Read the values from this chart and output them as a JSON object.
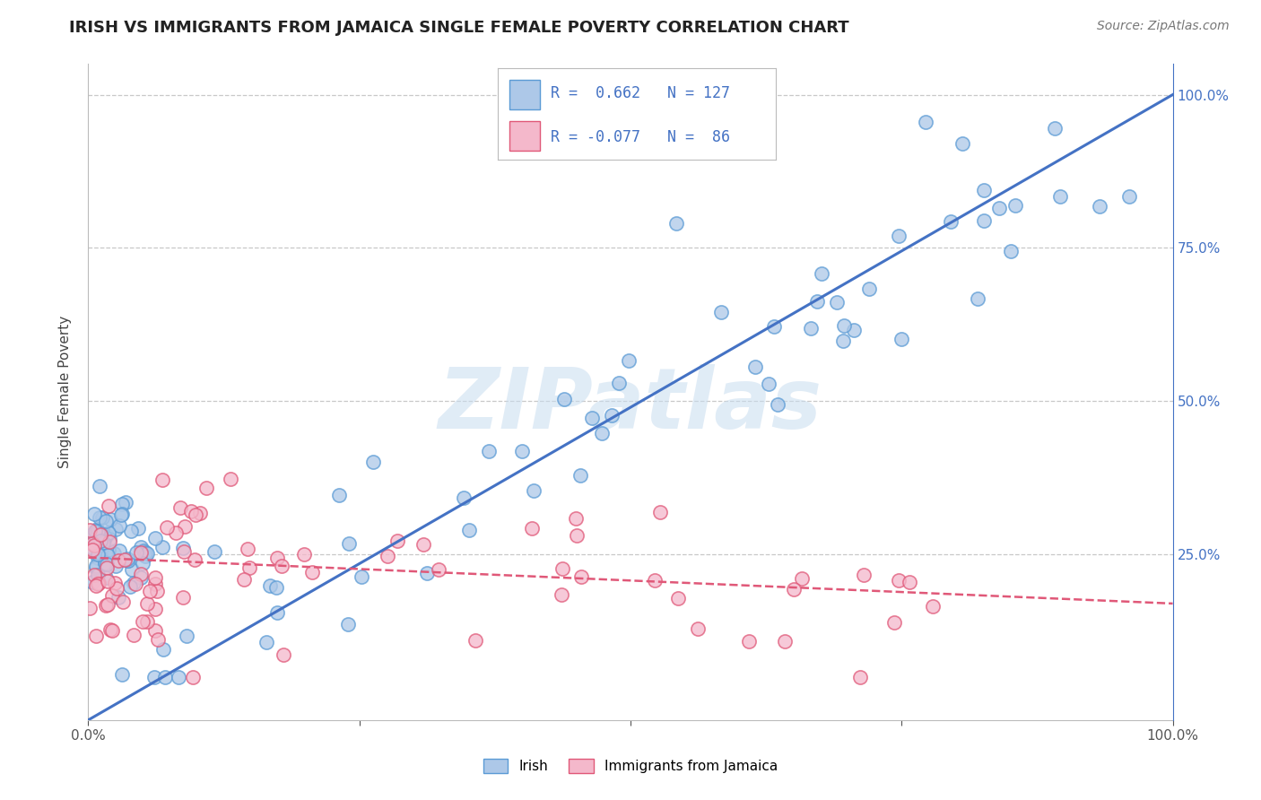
{
  "title": "IRISH VS IMMIGRANTS FROM JAMAICA SINGLE FEMALE POVERTY CORRELATION CHART",
  "source": "Source: ZipAtlas.com",
  "ylabel": "Single Female Poverty",
  "legend_labels": [
    "Irish",
    "Immigrants from Jamaica"
  ],
  "irish_R": 0.662,
  "irish_N": 127,
  "jamaica_R": -0.077,
  "jamaica_N": 86,
  "irish_color": "#adc8e8",
  "irish_edge_color": "#5b9bd5",
  "jamaica_color": "#f4b8cb",
  "jamaica_edge_color": "#e05878",
  "irish_line_color": "#4472c4",
  "jamaica_line_color": "#e05878",
  "watermark": "ZIPatlas",
  "background_color": "#ffffff",
  "grid_color": "#c8c8c8",
  "irish_line_x0": 0.0,
  "irish_line_y0": -0.02,
  "irish_line_x1": 1.0,
  "irish_line_y1": 1.0,
  "jamaica_line_x0": 0.0,
  "jamaica_line_y0": 0.245,
  "jamaica_line_x1": 1.0,
  "jamaica_line_y1": 0.17,
  "xlim": [
    0,
    1
  ],
  "ylim": [
    -0.02,
    1.05
  ]
}
